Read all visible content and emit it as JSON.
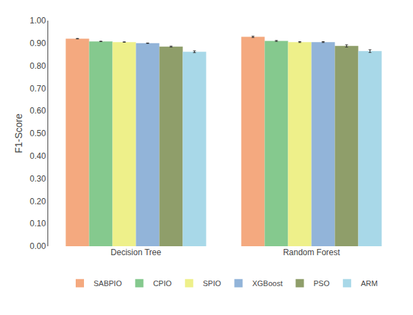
{
  "chart_data": {
    "type": "bar",
    "categories": [
      "Decision Tree",
      "Random Forest"
    ],
    "series": [
      {
        "name": "SABPIO",
        "color": "#F4A97F",
        "values": [
          0.92,
          0.928
        ],
        "errors": [
          0.001,
          0.003
        ]
      },
      {
        "name": "CPIO",
        "color": "#85C98E",
        "values": [
          0.908,
          0.91
        ],
        "errors": [
          0.001,
          0.002
        ]
      },
      {
        "name": "SPIO",
        "color": "#EEF08A",
        "values": [
          0.905,
          0.905
        ],
        "errors": [
          0.001,
          0.002
        ]
      },
      {
        "name": "XGBoost",
        "color": "#92B4D9",
        "values": [
          0.9,
          0.905
        ],
        "errors": [
          0.001,
          0.002
        ]
      },
      {
        "name": "PSO",
        "color": "#8F9E6A",
        "values": [
          0.885,
          0.888
        ],
        "errors": [
          0.002,
          0.005
        ]
      },
      {
        "name": "ARM",
        "color": "#A8D8E8",
        "values": [
          0.862,
          0.865
        ],
        "errors": [
          0.004,
          0.006
        ]
      }
    ],
    "ylabel": "F1-Score",
    "ylim": [
      0.0,
      1.0
    ],
    "yticks": [
      {
        "value": 0.0,
        "label": "0.00"
      },
      {
        "value": 0.1,
        "label": "0.10"
      },
      {
        "value": 0.2,
        "label": "0.20"
      },
      {
        "value": 0.3,
        "label": "0.30"
      },
      {
        "value": 0.4,
        "label": "0.40"
      },
      {
        "value": 0.5,
        "label": "0.50"
      },
      {
        "value": 0.6,
        "label": "0.60"
      },
      {
        "value": 0.7,
        "label": "0.70"
      },
      {
        "value": 0.8,
        "label": "0.80"
      },
      {
        "value": 0.9,
        "label": "0.90"
      },
      {
        "value": 1.0,
        "label": "1.00"
      }
    ],
    "grid": false,
    "legend": "bottom"
  }
}
